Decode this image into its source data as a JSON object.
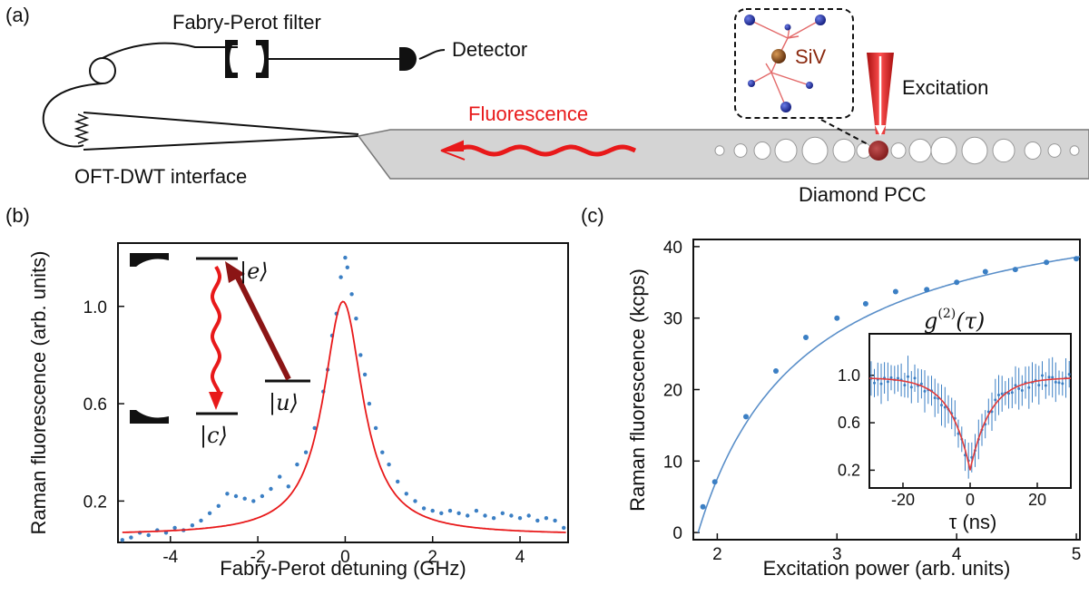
{
  "panel_labels": {
    "a": "(a)",
    "b": "(b)",
    "c": "(c)"
  },
  "diagram": {
    "fp_filter_label": "Fabry-Perot filter",
    "detector_label": "Detector",
    "fluorescence_label": "Fluorescence",
    "excitation_label": "Excitation",
    "siv_label": "SiV",
    "interface_label": "OFT-DWT interface",
    "pcc_label": "Diamond PCC",
    "colors": {
      "fluorescence": "#e8191a",
      "excitation": "#cc1818",
      "siv_atom": "#8b4513",
      "carbon_atom": "#1c2b9c",
      "waveguide": "#d4d4d4"
    }
  },
  "chart_data": [
    {
      "type": "scatter",
      "panel": "(b)",
      "xlabel": "Fabry-Perot detuning (GHz)",
      "ylabel": "Raman fluorescence (arb. units)",
      "xlim": [
        -5.2,
        5.1
      ],
      "ylim": [
        0.03,
        1.26
      ],
      "xticks": [
        -4,
        -2,
        0,
        2,
        4
      ],
      "yticks": [
        0.2,
        0.6,
        1.0
      ],
      "xtick_labels": [
        "-4",
        "-2",
        "0",
        "2",
        "4"
      ],
      "ytick_labels": [
        "0.2",
        "0.6",
        "1.0"
      ],
      "fit": {
        "form": "lorentzian",
        "amplitude": 0.96,
        "center": -0.05,
        "hwhm": 0.55,
        "offset": 0.06
      },
      "points": [
        [
          -5.1,
          0.04
        ],
        [
          -4.9,
          0.05
        ],
        [
          -4.7,
          0.07
        ],
        [
          -4.5,
          0.06
        ],
        [
          -4.3,
          0.08
        ],
        [
          -4.1,
          0.07
        ],
        [
          -3.9,
          0.09
        ],
        [
          -3.7,
          0.08
        ],
        [
          -3.5,
          0.1
        ],
        [
          -3.3,
          0.12
        ],
        [
          -3.1,
          0.15
        ],
        [
          -2.9,
          0.18
        ],
        [
          -2.7,
          0.23
        ],
        [
          -2.5,
          0.22
        ],
        [
          -2.3,
          0.21
        ],
        [
          -2.1,
          0.2
        ],
        [
          -1.9,
          0.22
        ],
        [
          -1.7,
          0.25
        ],
        [
          -1.5,
          0.3
        ],
        [
          -1.3,
          0.26
        ],
        [
          -1.1,
          0.35
        ],
        [
          -0.9,
          0.4
        ],
        [
          -0.7,
          0.5
        ],
        [
          -0.5,
          0.65
        ],
        [
          -0.4,
          0.74
        ],
        [
          -0.3,
          0.88
        ],
        [
          -0.2,
          0.97
        ],
        [
          -0.1,
          1.12
        ],
        [
          0.0,
          1.2
        ],
        [
          0.05,
          1.16
        ],
        [
          0.15,
          1.05
        ],
        [
          0.25,
          0.95
        ],
        [
          0.35,
          0.8
        ],
        [
          0.45,
          0.72
        ],
        [
          0.55,
          0.6
        ],
        [
          0.7,
          0.5
        ],
        [
          0.85,
          0.4
        ],
        [
          1.0,
          0.35
        ],
        [
          1.2,
          0.28
        ],
        [
          1.4,
          0.23
        ],
        [
          1.6,
          0.2
        ],
        [
          1.8,
          0.17
        ],
        [
          2.0,
          0.16
        ],
        [
          2.2,
          0.15
        ],
        [
          2.4,
          0.16
        ],
        [
          2.6,
          0.15
        ],
        [
          2.8,
          0.14
        ],
        [
          3.0,
          0.16
        ],
        [
          3.2,
          0.14
        ],
        [
          3.4,
          0.13
        ],
        [
          3.6,
          0.15
        ],
        [
          3.8,
          0.14
        ],
        [
          4.0,
          0.13
        ],
        [
          4.2,
          0.14
        ],
        [
          4.4,
          0.12
        ],
        [
          4.6,
          0.13
        ],
        [
          4.8,
          0.12
        ],
        [
          5.0,
          0.09
        ]
      ],
      "inset": {
        "levels": {
          "e": "|e⟩",
          "u": "|u⟩",
          "c": "|c⟩"
        },
        "colors": {
          "drive": "#8b1515",
          "emission": "#e8191a"
        }
      }
    },
    {
      "type": "scatter",
      "panel": "(c)",
      "xlabel": "Excitation power (arb. units)",
      "ylabel": "Raman fluorescence (kcps)",
      "xlim": [
        1.8,
        5.03
      ],
      "ylim": [
        -1,
        41
      ],
      "xticks": [
        2,
        3,
        4,
        5
      ],
      "yticks": [
        0,
        10,
        20,
        30,
        40
      ],
      "xtick_labels": [
        "2",
        "3",
        "4",
        "5"
      ],
      "ytick_labels": [
        "0",
        "10",
        "20",
        "30",
        "40"
      ],
      "fit": {
        "form": "saturation",
        "a": 49.36,
        "x0": 1.84,
        "xs": 0.89
      },
      "points": [
        [
          1.88,
          3.6
        ],
        [
          1.98,
          7.1
        ],
        [
          2.24,
          16.2
        ],
        [
          2.49,
          22.6
        ],
        [
          2.74,
          27.3
        ],
        [
          3.0,
          30.0
        ],
        [
          3.24,
          32.0
        ],
        [
          3.49,
          33.7
        ],
        [
          3.75,
          34.0
        ],
        [
          4.0,
          35.0
        ],
        [
          4.24,
          36.5
        ],
        [
          4.49,
          36.8
        ],
        [
          4.75,
          37.8
        ],
        [
          5.0,
          38.3
        ]
      ],
      "inset": {
        "title": "g(2)(τ)",
        "title_main": "g",
        "title_super": "(2)",
        "title_arg": "(τ)",
        "xlabel": "τ (ns)",
        "xlim": [
          -30,
          30
        ],
        "ylim": [
          0.05,
          1.35
        ],
        "xticks": [
          -20,
          0,
          20
        ],
        "yticks": [
          0.2,
          0.6,
          1.0
        ],
        "xtick_labels": [
          "-20",
          "0",
          "20"
        ],
        "ytick_labels": [
          "0.2",
          "0.6",
          "1.0"
        ],
        "fit": {
          "form": "exp_dip",
          "depth": 0.78,
          "tau": 6.0,
          "baseline": 0.98
        },
        "colors": {
          "points": "#3b7fc4",
          "fit": "#e23b3b"
        }
      }
    }
  ]
}
